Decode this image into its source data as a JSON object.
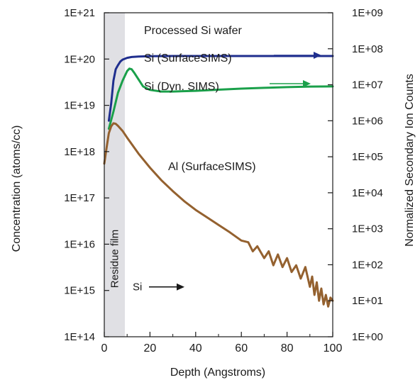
{
  "chart_data": {
    "type": "line",
    "title": "Processed Si wafer",
    "xlabel": "Depth (Angstroms)",
    "ylabel_left": "Concentration (atoms/cc)",
    "ylabel_right": "Normalized Secondary Ion Counts",
    "x_ticks": [
      "0",
      "20",
      "40",
      "60",
      "80",
      "100"
    ],
    "xlim": [
      0,
      100
    ],
    "y_left_ticks": [
      "1E+14",
      "1E+15",
      "1E+16",
      "1E+17",
      "1E+18",
      "1E+19",
      "1E+20",
      "1E+21"
    ],
    "ylim_left": [
      100000000000000.0,
      1e+21
    ],
    "y_right_ticks": [
      "1E+00",
      "1E+01",
      "1E+02",
      "1E+03",
      "1E+04",
      "1E+05",
      "1E+06",
      "1E+07",
      "1E+08",
      "1E+09"
    ],
    "ylim_right": [
      1,
      1000000000.0
    ],
    "y_scale": "log",
    "grid": false,
    "region": {
      "label": "Residue film",
      "x_range": [
        0,
        9
      ],
      "color": "#e0e0e4"
    },
    "annotations": [
      {
        "text": "Si",
        "x": 12,
        "y": 1000000000000000.0,
        "arrow": "right"
      }
    ],
    "series": [
      {
        "name": "Si (SurfaceSIMS)",
        "color": "#1f2e8e",
        "axis": "right",
        "arrow": "right",
        "x": [
          2,
          3,
          4,
          5,
          6,
          7,
          8,
          10,
          12,
          15,
          20,
          30,
          40,
          60,
          80,
          100
        ],
        "y": [
          1000000.0,
          3000000.0,
          13000000.0,
          27000000.0,
          35000000.0,
          44000000.0,
          50000000.0,
          56000000.0,
          59000000.0,
          61000000.0,
          62000000.0,
          63000000.0,
          63000000.0,
          63000000.0,
          63000000.0,
          63000000.0
        ]
      },
      {
        "name": "Si (Dyn. SIMS)",
        "color": "#1aa04a",
        "axis": "right",
        "arrow": "right",
        "x": [
          2,
          4,
          6,
          8,
          10,
          11,
          12,
          13,
          15,
          17,
          20,
          25,
          30,
          40,
          50,
          60,
          70,
          80,
          90,
          100
        ],
        "y": [
          600000.0,
          1800000.0,
          6000000.0,
          13000000.0,
          24000000.0,
          28000000.0,
          27000000.0,
          22000000.0,
          14000000.0,
          9000000.0,
          7200000.0,
          6500000.0,
          6500000.0,
          6800000.0,
          7300000.0,
          7800000.0,
          8200000.0,
          8600000.0,
          8900000.0,
          9000000.0
        ]
      },
      {
        "name": "Al (SurfaceSIMS)",
        "color": "#94612f",
        "axis": "left",
        "arrow": "",
        "x": [
          0,
          1,
          2,
          3,
          4,
          5,
          6,
          8,
          10,
          15,
          20,
          25,
          30,
          35,
          40,
          45,
          50,
          55,
          60,
          63,
          65,
          67,
          70,
          72,
          74,
          76,
          78,
          80,
          82,
          84,
          86,
          88,
          90,
          91,
          92,
          93,
          94,
          95,
          96,
          97,
          98,
          99,
          100
        ],
        "y": [
          5.5e+17,
          1.2e+18,
          2.5e+18,
          3.5e+18,
          4.1e+18,
          4e+18,
          3.6e+18,
          2.8e+18,
          2e+18,
          9e+17,
          4.5e+17,
          2.4e+17,
          1.4e+17,
          8.5e+16,
          5.5e+16,
          3.8e+16,
          2.6e+16,
          1.8e+16,
          1.2e+16,
          1.1e+16,
          7000000000000000.0,
          9000000000000000.0,
          5000000000000000.0,
          7000000000000000.0,
          3500000000000000.0,
          6000000000000000.0,
          3200000000000000.0,
          5000000000000000.0,
          2500000000000000.0,
          3500000000000000.0,
          1800000000000000.0,
          3200000000000000.0,
          1200000000000000.0,
          2000000000000000.0,
          800000000000000.0,
          1500000000000000.0,
          600000000000000.0,
          1100000000000000.0,
          500000000000000.0,
          800000000000000.0,
          450000000000000.0,
          700000000000000.0,
          600000000000000.0
        ]
      }
    ]
  }
}
